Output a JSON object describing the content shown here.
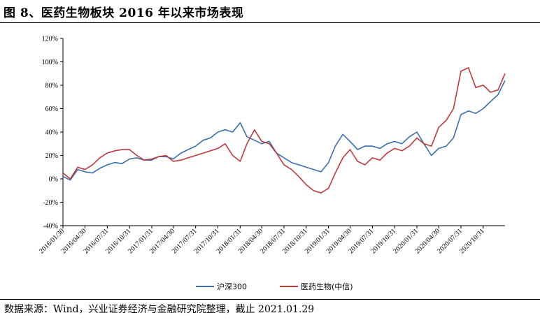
{
  "header": {
    "title": "图 8、医药生物板块 2016 年以来市场表现"
  },
  "footer": {
    "source": "数据来源：Wind，兴业证券经济与金融研究院整理，截止 2021.01.29"
  },
  "chart_data": {
    "type": "line",
    "title": "",
    "xlabel": "",
    "ylabel": "",
    "ylim": [
      -40,
      120
    ],
    "yticks": [
      "120%",
      "100%",
      "80%",
      "60%",
      "40%",
      "20%",
      "0%",
      "-20%",
      "-40%"
    ],
    "yvalues": [
      120,
      100,
      80,
      60,
      40,
      20,
      0,
      -20,
      -40
    ],
    "xticks": [
      "2016/01/30",
      "2016/04/30",
      "2016/07/31",
      "2016/10/31",
      "2017/01/31",
      "2017/04/30",
      "2017/07/31",
      "2017/10/31",
      "2018/01/31",
      "2018/04/30",
      "2018/07/31",
      "2018/10/31",
      "2019/01/31",
      "2019/04/30",
      "2019/07/31",
      "2019/10/31",
      "2020/01/31",
      "2020/04/30",
      "2020/07/31",
      "2020/10/31"
    ],
    "legend_position": "bottom-center",
    "grid": false,
    "series": [
      {
        "name": "沪深300",
        "color": "#3A6FB0",
        "x": [
          "2016/01/30",
          "2016/02/29",
          "2016/03/31",
          "2016/04/30",
          "2016/05/31",
          "2016/06/30",
          "2016/07/31",
          "2016/08/31",
          "2016/09/30",
          "2016/10/31",
          "2016/11/30",
          "2016/12/31",
          "2017/01/31",
          "2017/02/28",
          "2017/03/31",
          "2017/04/30",
          "2017/05/31",
          "2017/06/30",
          "2017/07/31",
          "2017/08/31",
          "2017/09/30",
          "2017/10/31",
          "2017/11/30",
          "2017/12/31",
          "2018/01/31",
          "2018/02/28",
          "2018/03/31",
          "2018/04/30",
          "2018/05/31",
          "2018/06/30",
          "2018/07/31",
          "2018/08/31",
          "2018/09/30",
          "2018/10/31",
          "2018/11/30",
          "2018/12/31",
          "2019/01/31",
          "2019/02/28",
          "2019/03/31",
          "2019/04/30",
          "2019/05/31",
          "2019/06/30",
          "2019/07/31",
          "2019/08/31",
          "2019/09/30",
          "2019/10/31",
          "2019/11/30",
          "2019/12/31",
          "2020/01/31",
          "2020/02/29",
          "2020/03/31",
          "2020/04/30",
          "2020/05/31",
          "2020/06/30",
          "2020/07/31",
          "2020/08/31",
          "2020/09/30",
          "2020/10/31",
          "2020/11/30",
          "2020/12/31",
          "2021/01/29"
        ],
        "values": [
          2,
          -1,
          8,
          6,
          5,
          9,
          12,
          14,
          13,
          17,
          18,
          16,
          16,
          19,
          19,
          17,
          22,
          25,
          28,
          33,
          35,
          40,
          42,
          40,
          48,
          36,
          33,
          30,
          32,
          22,
          18,
          14,
          12,
          10,
          8,
          6,
          14,
          28,
          38,
          32,
          25,
          28,
          28,
          26,
          30,
          32,
          30,
          36,
          40,
          30,
          20,
          26,
          28,
          35,
          55,
          58,
          56,
          60,
          66,
          72,
          84
        ]
      },
      {
        "name": "医药生物(中信)",
        "color": "#C0393B",
        "x": [
          "2016/01/30",
          "2016/02/29",
          "2016/03/31",
          "2016/04/30",
          "2016/05/31",
          "2016/06/30",
          "2016/07/31",
          "2016/08/31",
          "2016/09/30",
          "2016/10/31",
          "2016/11/30",
          "2016/12/31",
          "2017/01/31",
          "2017/02/28",
          "2017/03/31",
          "2017/04/30",
          "2017/05/31",
          "2017/06/30",
          "2017/07/31",
          "2017/08/31",
          "2017/09/30",
          "2017/10/31",
          "2017/11/30",
          "2017/12/31",
          "2018/01/31",
          "2018/02/28",
          "2018/03/31",
          "2018/04/30",
          "2018/05/31",
          "2018/06/30",
          "2018/07/31",
          "2018/08/31",
          "2018/09/30",
          "2018/10/31",
          "2018/11/30",
          "2018/12/31",
          "2019/01/31",
          "2019/02/28",
          "2019/03/31",
          "2019/04/30",
          "2019/05/31",
          "2019/06/30",
          "2019/07/31",
          "2019/08/31",
          "2019/09/30",
          "2019/10/31",
          "2019/11/30",
          "2019/12/31",
          "2020/01/31",
          "2020/02/29",
          "2020/03/31",
          "2020/04/30",
          "2020/05/31",
          "2020/06/30",
          "2020/07/31",
          "2020/08/31",
          "2020/09/30",
          "2020/10/31",
          "2020/11/30",
          "2020/12/31",
          "2021/01/29"
        ],
        "values": [
          5,
          0,
          10,
          8,
          12,
          18,
          22,
          24,
          25,
          25,
          20,
          16,
          17,
          19,
          20,
          15,
          16,
          18,
          20,
          22,
          24,
          26,
          30,
          20,
          15,
          30,
          42,
          32,
          30,
          22,
          12,
          8,
          2,
          -5,
          -10,
          -12,
          -8,
          5,
          18,
          25,
          15,
          12,
          18,
          16,
          22,
          26,
          24,
          28,
          35,
          30,
          28,
          44,
          50,
          60,
          92,
          95,
          78,
          80,
          74,
          76,
          90
        ]
      }
    ]
  }
}
